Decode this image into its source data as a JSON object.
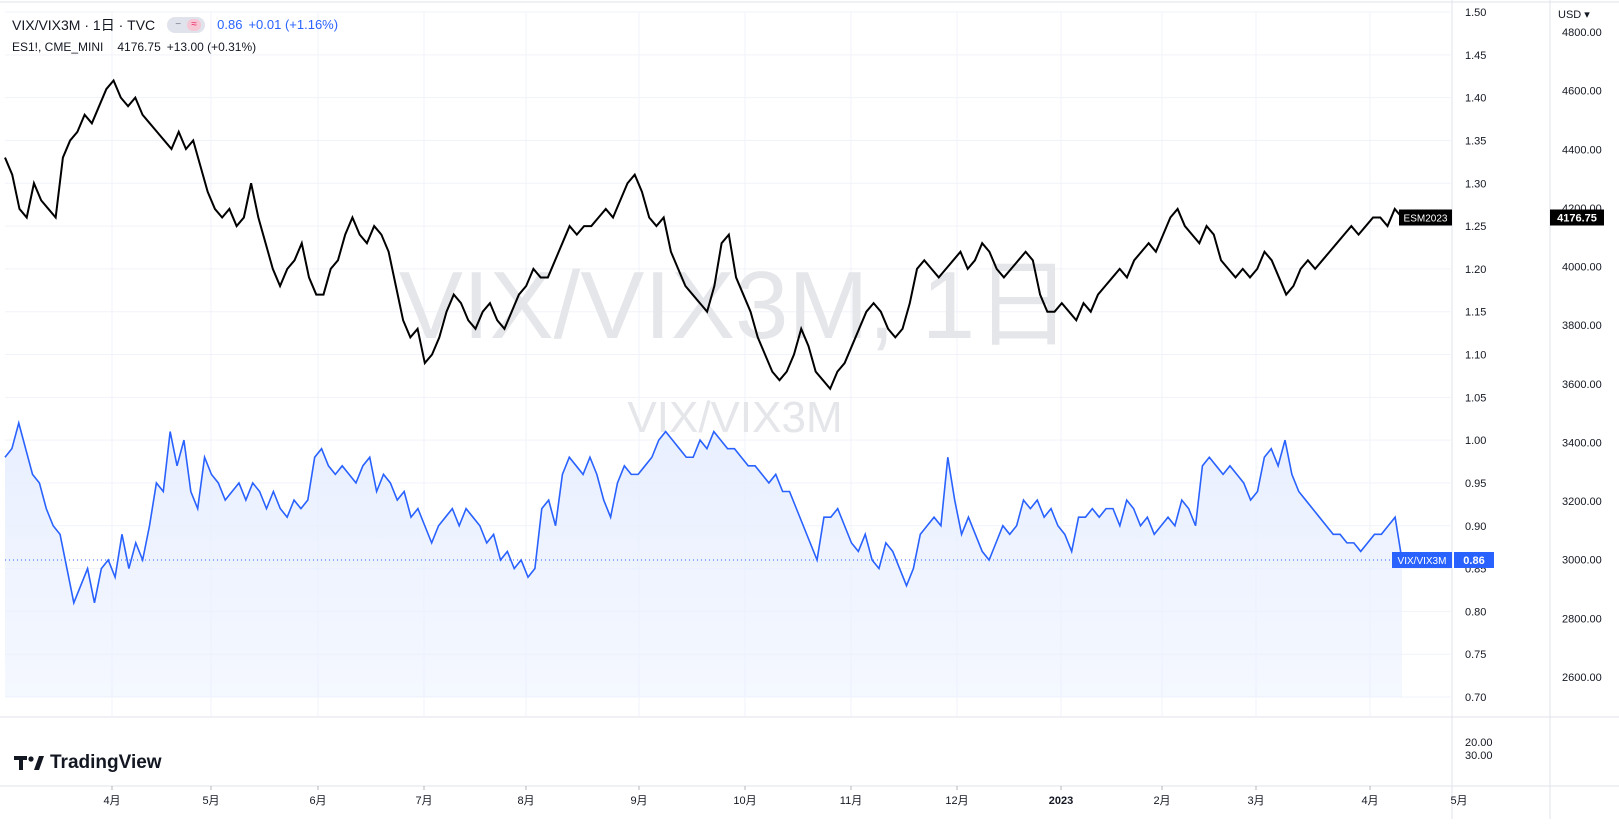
{
  "legend": {
    "symbol1": "VIX/VIX3M · 1日 · TVC",
    "symbol1_value": "0.86",
    "symbol1_change": "+0.01 (+1.16%)",
    "symbol2": "ES1!, CME_MINI",
    "symbol2_value": "4176.75",
    "symbol2_change": "+13.00 (+0.31%)"
  },
  "currency": "USD ▾",
  "watermark": {
    "big": "VIX/VIX3M, 1日",
    "small": "VIX/VIX3M"
  },
  "branding": "TradingView",
  "labels": {
    "es_name": "ESM2023",
    "es_price": "4176.75",
    "vix_name": "VIX/VIX3M",
    "vix_price": "0.86"
  },
  "colors": {
    "es_line": "#000000",
    "vix_line": "#2962ff",
    "vix_fill": "#e8efff",
    "grid": "#f0f3fa"
  },
  "chart_data": {
    "type": "line",
    "x_axis_labels": [
      "4月",
      "5月",
      "6月",
      "7月",
      "8月",
      "9月",
      "10月",
      "11月",
      "12月",
      "2023",
      "2月",
      "3月",
      "4月",
      "5月"
    ],
    "left_price_axis": {
      "ticks": [
        "1.50",
        "1.45",
        "1.40",
        "1.35",
        "1.30",
        "1.25",
        "1.20",
        "1.15",
        "1.10",
        "1.05",
        "1.00",
        "0.95",
        "0.90",
        "0.85",
        "0.80",
        "0.75",
        "0.70"
      ],
      "range": [
        0.7,
        1.5
      ]
    },
    "right_price_axis": {
      "ticks": [
        "4800.00",
        "4600.00",
        "4400.00",
        "4200.00",
        "4000.00",
        "3800.00",
        "3600.00",
        "3400.00",
        "3200.00",
        "3000.00",
        "2800.00",
        "2600.00"
      ],
      "range": [
        2600,
        4800
      ]
    },
    "lower_pane_axis": {
      "ticks": [
        "20.00",
        "30.00"
      ]
    },
    "series": [
      {
        "name": "ESM2023",
        "axis": "left",
        "values": [
          1.33,
          1.31,
          1.27,
          1.26,
          1.3,
          1.28,
          1.27,
          1.26,
          1.33,
          1.35,
          1.36,
          1.38,
          1.37,
          1.39,
          1.41,
          1.42,
          1.4,
          1.39,
          1.4,
          1.38,
          1.37,
          1.36,
          1.35,
          1.34,
          1.36,
          1.34,
          1.35,
          1.32,
          1.29,
          1.27,
          1.26,
          1.27,
          1.25,
          1.26,
          1.3,
          1.26,
          1.23,
          1.2,
          1.18,
          1.2,
          1.21,
          1.23,
          1.19,
          1.17,
          1.17,
          1.2,
          1.21,
          1.24,
          1.26,
          1.24,
          1.23,
          1.25,
          1.24,
          1.22,
          1.18,
          1.14,
          1.12,
          1.13,
          1.09,
          1.1,
          1.12,
          1.15,
          1.17,
          1.16,
          1.14,
          1.13,
          1.15,
          1.16,
          1.14,
          1.13,
          1.15,
          1.17,
          1.18,
          1.2,
          1.19,
          1.19,
          1.21,
          1.23,
          1.25,
          1.24,
          1.25,
          1.25,
          1.26,
          1.27,
          1.26,
          1.28,
          1.3,
          1.31,
          1.29,
          1.26,
          1.25,
          1.26,
          1.22,
          1.2,
          1.18,
          1.17,
          1.16,
          1.15,
          1.18,
          1.23,
          1.24,
          1.19,
          1.17,
          1.15,
          1.12,
          1.1,
          1.08,
          1.07,
          1.08,
          1.1,
          1.13,
          1.11,
          1.08,
          1.07,
          1.06,
          1.08,
          1.09,
          1.11,
          1.13,
          1.15,
          1.16,
          1.15,
          1.13,
          1.12,
          1.13,
          1.16,
          1.2,
          1.21,
          1.2,
          1.19,
          1.2,
          1.21,
          1.22,
          1.2,
          1.21,
          1.23,
          1.22,
          1.2,
          1.19,
          1.2,
          1.21,
          1.22,
          1.21,
          1.17,
          1.15,
          1.15,
          1.16,
          1.15,
          1.14,
          1.16,
          1.15,
          1.17,
          1.18,
          1.19,
          1.2,
          1.19,
          1.21,
          1.22,
          1.23,
          1.22,
          1.24,
          1.26,
          1.27,
          1.25,
          1.24,
          1.23,
          1.25,
          1.24,
          1.21,
          1.2,
          1.19,
          1.2,
          1.19,
          1.2,
          1.22,
          1.21,
          1.19,
          1.17,
          1.18,
          1.2,
          1.21,
          1.2,
          1.21,
          1.22,
          1.23,
          1.24,
          1.25,
          1.24,
          1.25,
          1.26,
          1.26,
          1.25,
          1.27,
          1.26
        ]
      },
      {
        "name": "VIX/VIX3M",
        "axis": "left",
        "values": [
          0.98,
          0.99,
          1.02,
          0.99,
          0.96,
          0.95,
          0.92,
          0.9,
          0.89,
          0.85,
          0.81,
          0.83,
          0.85,
          0.81,
          0.85,
          0.86,
          0.84,
          0.89,
          0.85,
          0.88,
          0.86,
          0.9,
          0.95,
          0.94,
          1.01,
          0.97,
          1.0,
          0.94,
          0.92,
          0.98,
          0.96,
          0.95,
          0.93,
          0.94,
          0.95,
          0.93,
          0.95,
          0.94,
          0.92,
          0.94,
          0.92,
          0.91,
          0.93,
          0.92,
          0.93,
          0.98,
          0.99,
          0.97,
          0.96,
          0.97,
          0.96,
          0.95,
          0.97,
          0.98,
          0.94,
          0.96,
          0.95,
          0.93,
          0.94,
          0.91,
          0.92,
          0.9,
          0.88,
          0.9,
          0.91,
          0.92,
          0.9,
          0.92,
          0.91,
          0.9,
          0.88,
          0.89,
          0.86,
          0.87,
          0.85,
          0.86,
          0.84,
          0.85,
          0.92,
          0.93,
          0.9,
          0.96,
          0.98,
          0.97,
          0.96,
          0.98,
          0.96,
          0.93,
          0.91,
          0.95,
          0.97,
          0.96,
          0.96,
          0.97,
          0.98,
          1.0,
          1.01,
          1.0,
          0.99,
          0.98,
          0.98,
          1.0,
          0.99,
          1.01,
          1.0,
          0.99,
          0.99,
          0.98,
          0.97,
          0.97,
          0.96,
          0.95,
          0.96,
          0.94,
          0.94,
          0.92,
          0.9,
          0.88,
          0.86,
          0.91,
          0.91,
          0.92,
          0.9,
          0.88,
          0.87,
          0.89,
          0.86,
          0.85,
          0.88,
          0.87,
          0.85,
          0.83,
          0.85,
          0.89,
          0.9,
          0.91,
          0.9,
          0.98,
          0.93,
          0.89,
          0.91,
          0.89,
          0.87,
          0.86,
          0.88,
          0.9,
          0.89,
          0.9,
          0.93,
          0.92,
          0.93,
          0.91,
          0.92,
          0.9,
          0.89,
          0.87,
          0.91,
          0.91,
          0.92,
          0.91,
          0.92,
          0.92,
          0.9,
          0.93,
          0.92,
          0.9,
          0.91,
          0.89,
          0.9,
          0.91,
          0.9,
          0.93,
          0.92,
          0.9,
          0.97,
          0.98,
          0.97,
          0.96,
          0.97,
          0.96,
          0.95,
          0.93,
          0.94,
          0.98,
          0.99,
          0.97,
          1.0,
          0.96,
          0.94,
          0.93,
          0.92,
          0.91,
          0.9,
          0.89,
          0.89,
          0.88,
          0.88,
          0.87,
          0.88,
          0.89,
          0.89,
          0.9,
          0.91,
          0.86
        ]
      }
    ],
    "grid": true,
    "legend_position": "top-left"
  }
}
